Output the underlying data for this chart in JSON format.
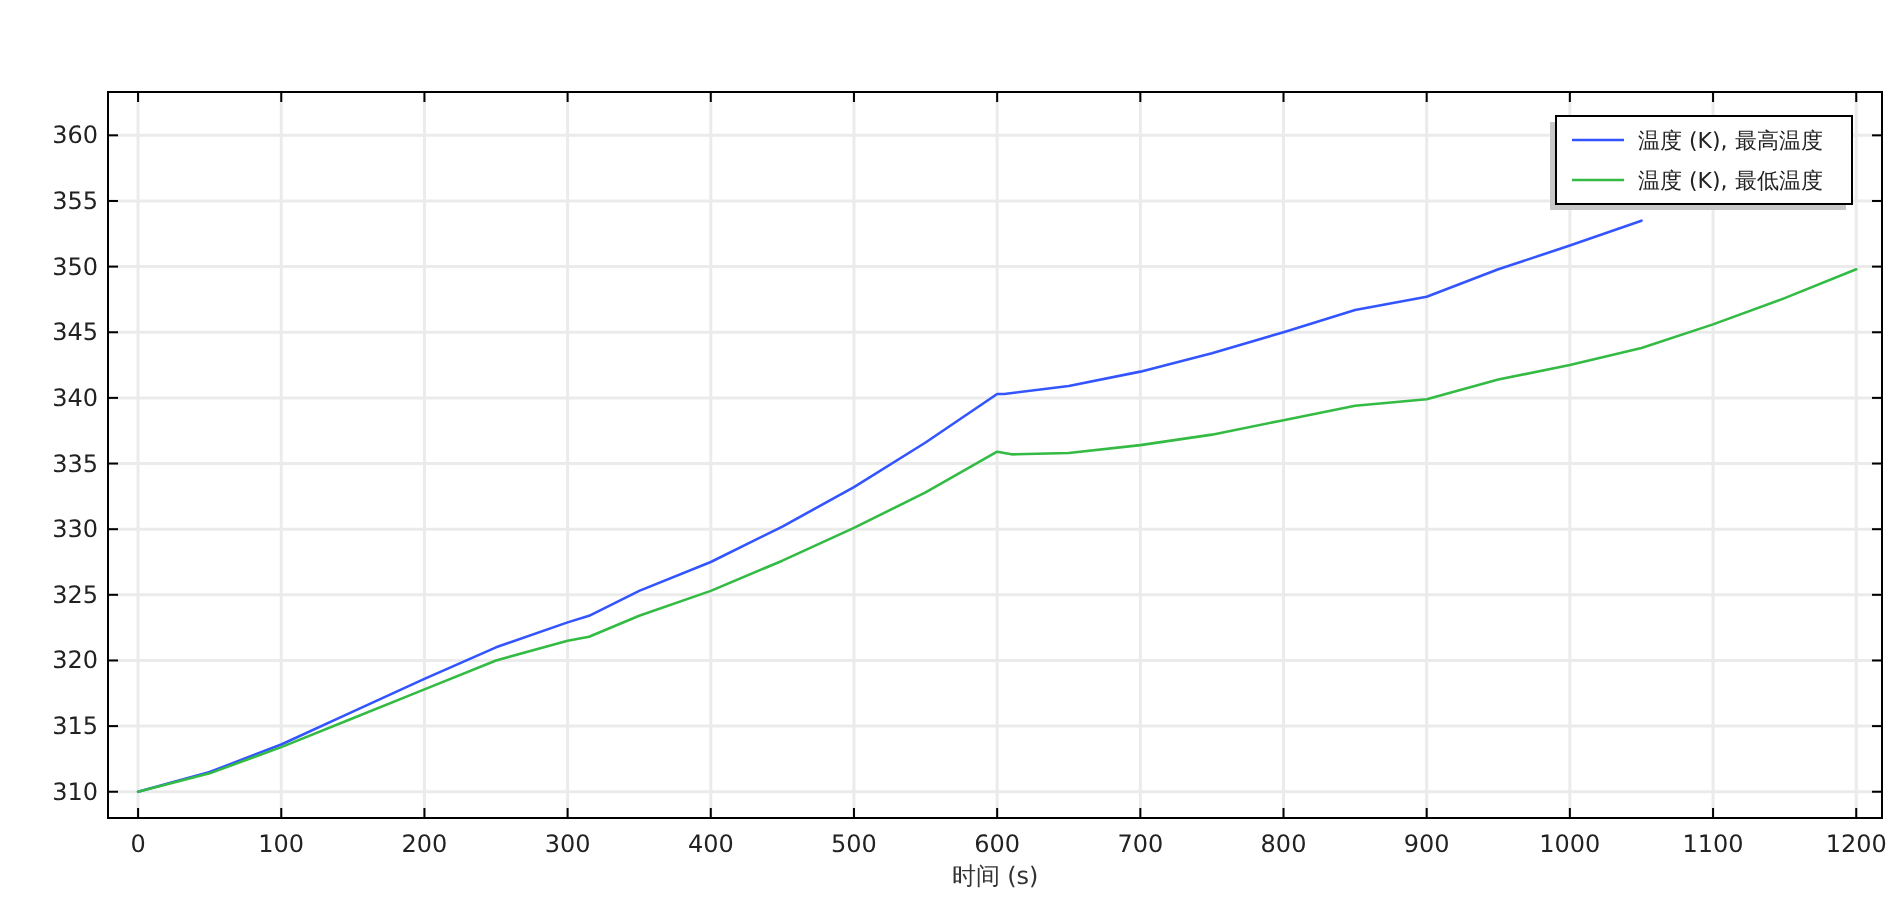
{
  "chart_data": {
    "type": "line",
    "xlabel": "时间 (s)",
    "xlim": [
      -21,
      1218
    ],
    "ylim": [
      308,
      363.3
    ],
    "xticks": [
      0,
      100,
      200,
      300,
      400,
      500,
      600,
      700,
      800,
      900,
      1000,
      1100,
      1200
    ],
    "yticks": [
      310,
      315,
      320,
      325,
      330,
      335,
      340,
      345,
      350,
      355,
      360
    ],
    "grid": true,
    "legend": "top right",
    "line_style": "solid",
    "marker": "none",
    "series": [
      {
        "name": "温度 (K), 最高温度",
        "color": "#3355ff",
        "x": [
          0,
          50,
          100,
          150,
          200,
          250,
          300,
          315,
          350,
          400,
          450,
          500,
          550,
          600,
          605,
          650,
          700,
          750,
          800,
          850,
          900,
          950,
          1000,
          1050
        ],
        "values": [
          310,
          311.5,
          313.6,
          316.1,
          318.6,
          321.0,
          322.9,
          323.4,
          325.3,
          327.5,
          330.2,
          333.2,
          336.6,
          340.3,
          340.3,
          340.9,
          342.0,
          343.4,
          345.0,
          346.7,
          347.7,
          349.8,
          351.6,
          353.5
        ]
      },
      {
        "name": "温度 (K), 最低温度",
        "color": "#33bb44",
        "x": [
          0,
          50,
          100,
          150,
          200,
          250,
          300,
          315,
          350,
          400,
          450,
          500,
          550,
          600,
          610,
          650,
          700,
          750,
          800,
          850,
          900,
          950,
          1000,
          1050,
          1100,
          1150,
          1200
        ],
        "values": [
          310,
          311.4,
          313.4,
          315.6,
          317.8,
          320.0,
          321.5,
          321.8,
          323.4,
          325.3,
          327.6,
          330.1,
          332.8,
          335.9,
          335.7,
          335.8,
          336.4,
          337.2,
          338.3,
          339.4,
          339.9,
          341.4,
          342.5,
          343.8,
          345.6,
          347.6,
          349.8
        ]
      }
    ]
  }
}
